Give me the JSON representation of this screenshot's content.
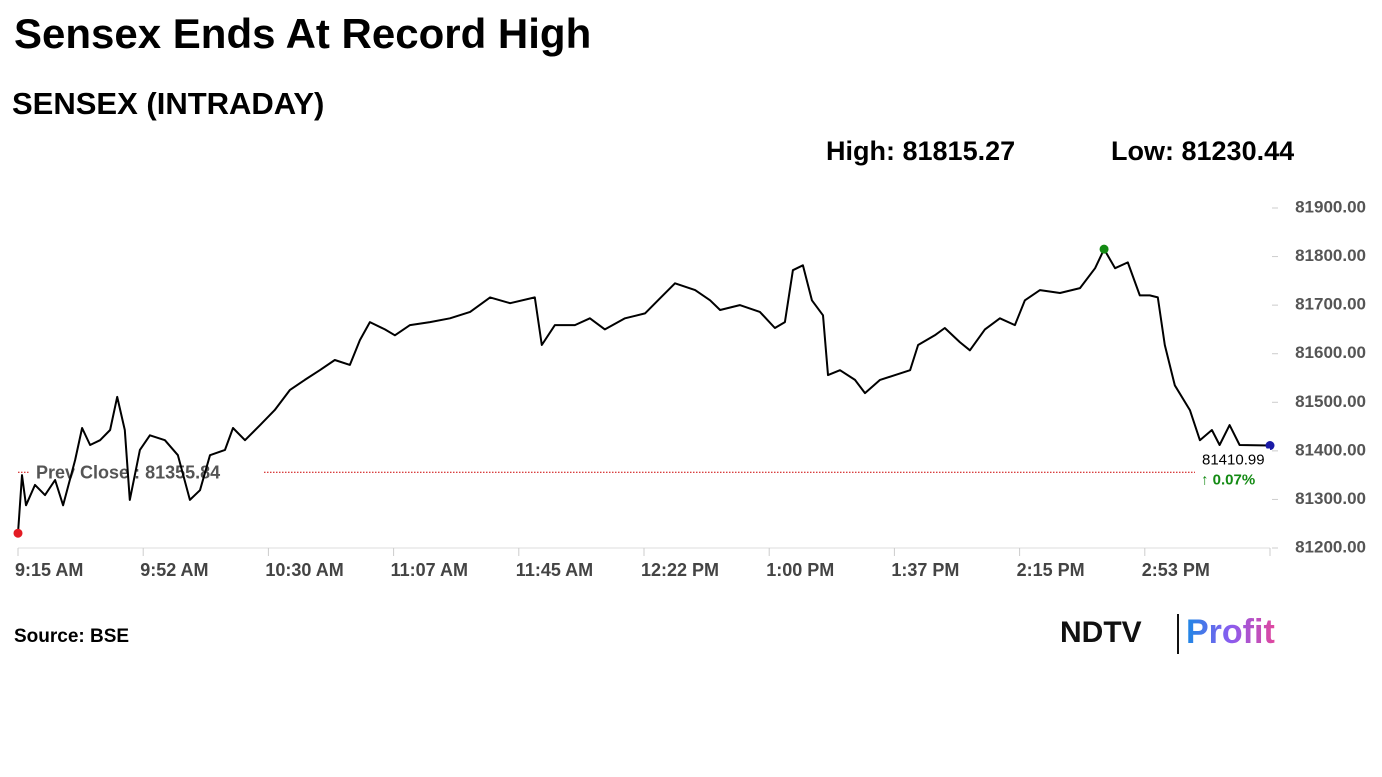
{
  "chart_data": {
    "type": "line",
    "title": "Sensex Ends At Record High",
    "subtitle": "SENSEX (INTRADAY)",
    "high_label": "High:",
    "low_label": "Low:",
    "reference": {
      "label": "Prev Close :",
      "value": 81355.84,
      "color": "#cc0000"
    },
    "change": "↑ 0.07%",
    "source": "Source: BSE",
    "logo": {
      "left": "NDTV",
      "right": "Profit"
    },
    "color": "#000000",
    "markers": {
      "low": "#e31b23",
      "high": "#138a13",
      "last": "#1a1aa6"
    },
    "x": [
      0,
      1.2,
      2.4,
      5.1,
      8.1,
      11.1,
      13.5,
      17.1,
      19.2,
      21.6,
      24.6,
      27.6,
      29.7,
      32,
      33.5,
      36.5,
      39.5,
      44,
      47.9,
      51.5,
      54.5,
      57.5,
      62,
      64.4,
      68,
      72.5,
      76.9,
      81.4,
      85.9,
      90.4,
      94.9,
      99.4,
      102.4,
      105.4,
      109.9,
      112.9,
      117.4,
      123.4,
      129.4,
      135.4,
      141.4,
      147.4,
      154.8,
      156.9,
      160.8,
      166.8,
      171.3,
      175.8,
      181.8,
      187.8,
      192.3,
      196.8,
      202.8,
      207.3,
      210.3,
      216.2,
      222.2,
      226.7,
      229.7,
      232.1,
      235.1,
      237.8,
      241.1,
      242.6,
      246.2,
      250.7,
      253.7,
      258.2,
      262.7,
      267.2,
      269.6,
      274.6,
      277.6,
      282.1,
      285.1,
      289.6,
      294.1,
      298.6,
      301.6,
      306.1,
      312.1,
      318.1,
      322.6,
      325.3,
      328.6,
      332.4,
      336,
      339,
      341.4,
      343.5,
      346.5,
      351,
      354,
      357.6,
      359.9,
      362.9,
      365.9,
      375
    ],
    "values": [
      81230.44,
      81350,
      81288,
      81330,
      81309,
      81340,
      81288,
      81381,
      81447,
      81412,
      81422,
      81443,
      81511,
      81443,
      81299,
      81402,
      81432,
      81422,
      81391,
      81299,
      81319,
      81391,
      81402,
      81447,
      81422,
      81453,
      81484,
      81525,
      81546,
      81566,
      81587,
      81577,
      81628,
      81665,
      81650,
      81638,
      81659,
      81665,
      81673,
      81686,
      81716,
      81704,
      81716,
      81618,
      81659,
      81659,
      81673,
      81650,
      81673,
      81683,
      81714,
      81745,
      81731,
      81710,
      81690,
      81700,
      81686,
      81653,
      81665,
      81772,
      81782,
      81710,
      81679,
      81556,
      81566,
      81546,
      81519,
      81546,
      81556,
      81566,
      81618,
      81638,
      81653,
      81624,
      81607,
      81650,
      81673,
      81659,
      81710,
      81731,
      81725,
      81735,
      81776,
      81815.27,
      81776,
      81788,
      81720,
      81720,
      81716,
      81618,
      81535,
      81484,
      81422,
      81443,
      81412,
      81453,
      81412,
      81410.99
    ],
    "xlim": [
      0,
      375
    ],
    "xticks": [
      {
        "value": 0,
        "label": "9:15 AM"
      },
      {
        "value": 37.5,
        "label": "9:52 AM"
      },
      {
        "value": 75,
        "label": "10:30 AM"
      },
      {
        "value": 112.5,
        "label": "11:07 AM"
      },
      {
        "value": 150,
        "label": "11:45 AM"
      },
      {
        "value": 187.5,
        "label": "12:22 PM"
      },
      {
        "value": 225,
        "label": "1:00 PM"
      },
      {
        "value": 262.5,
        "label": "1:37 PM"
      },
      {
        "value": 300,
        "label": "2:15 PM"
      },
      {
        "value": 337.5,
        "label": "2:53 PM"
      }
    ],
    "ylim": [
      81200,
      81900
    ],
    "yticks": [
      {
        "value": 81200,
        "label": "81200.00"
      },
      {
        "value": 81300,
        "label": "81300.00"
      },
      {
        "value": 81400,
        "label": "81400.00"
      },
      {
        "value": 81500,
        "label": "81500.00"
      },
      {
        "value": 81600,
        "label": "81600.00"
      },
      {
        "value": 81700,
        "label": "81700.00"
      },
      {
        "value": 81800,
        "label": "81800.00"
      },
      {
        "value": 81900,
        "label": "81900.00"
      }
    ],
    "grid": false
  }
}
